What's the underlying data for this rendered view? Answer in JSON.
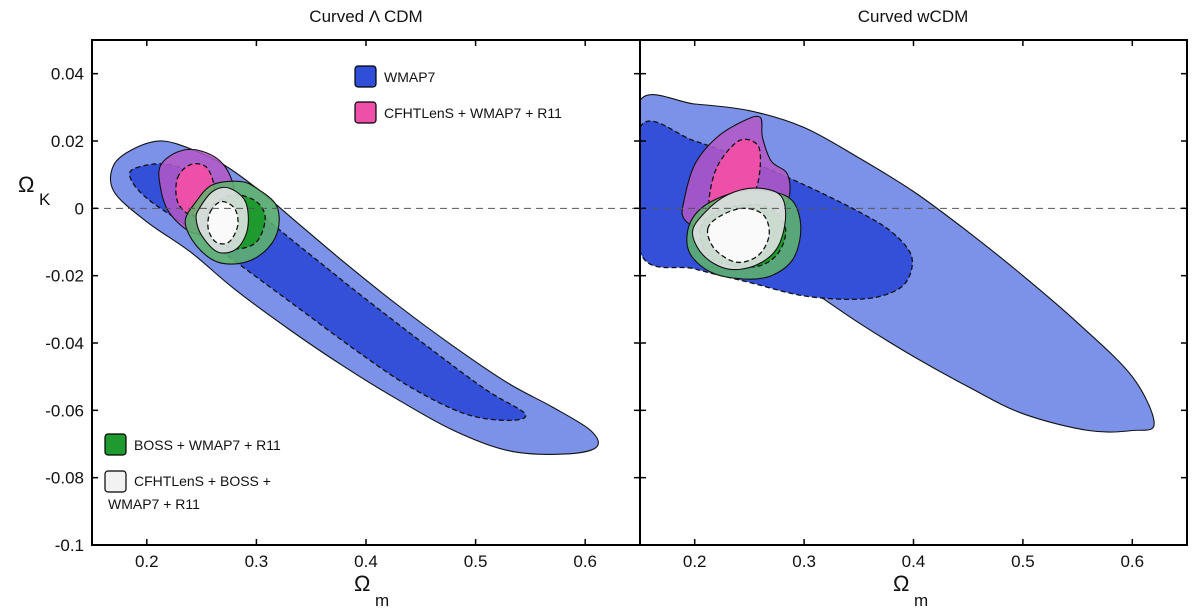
{
  "chart_data": [
    {
      "type": "contour",
      "title": "Curved Λ CDM",
      "xlabel": "Ω",
      "xlabel_sub": "m",
      "ylabel": "Ω",
      "ylabel_sub": "K",
      "xlim": [
        0.15,
        0.65
      ],
      "ylim": [
        -0.1,
        0.05
      ],
      "xticks": [
        0.2,
        0.3,
        0.4,
        0.5,
        0.6
      ],
      "xtick_labels": [
        "0.2",
        "0.3",
        "0.4",
        "0.5",
        "0.6"
      ],
      "yticks": [
        -0.1,
        -0.08,
        -0.06,
        -0.04,
        -0.02,
        0,
        0.02,
        0.04
      ],
      "ytick_labels": [
        "-0.1",
        "-0.08",
        "-0.06",
        "-0.04",
        "-0.02",
        "0",
        "0.02",
        "0.04"
      ],
      "reference_line_y": 0,
      "legend": [
        {
          "label": "WMAP7",
          "color": "#2f4fd8",
          "placement": "top-center"
        },
        {
          "label": "CFHTLenS + WMAP7 + R11",
          "color": "#ee4fa8",
          "placement": "top-center"
        },
        {
          "label": "BOSS + WMAP7 + R11",
          "color": "#1f9a2e",
          "placement": "bottom-left"
        },
        {
          "label": "CFHTLenS + BOSS + WMAP7 + R11",
          "label_lines": [
            "CFHTLenS + BOSS +",
            "WMAP7 + R11"
          ],
          "color": "#f2f2f2",
          "placement": "bottom-left"
        }
      ],
      "contours": [
        {
          "series": "WMAP7",
          "level": "outer",
          "color": "#7b92e8",
          "opacity": 1,
          "dashed": false,
          "points": [
            [
              0.17,
              0.013
            ],
            [
              0.19,
              0.018
            ],
            [
              0.215,
              0.02
            ],
            [
              0.245,
              0.017
            ],
            [
              0.27,
              0.013
            ],
            [
              0.3,
              0.006
            ],
            [
              0.34,
              -0.005
            ],
            [
              0.38,
              -0.016
            ],
            [
              0.43,
              -0.029
            ],
            [
              0.48,
              -0.041
            ],
            [
              0.53,
              -0.052
            ],
            [
              0.57,
              -0.059
            ],
            [
              0.605,
              -0.066
            ],
            [
              0.61,
              -0.071
            ],
            [
              0.58,
              -0.073
            ],
            [
              0.53,
              -0.072
            ],
            [
              0.48,
              -0.066
            ],
            [
              0.43,
              -0.057
            ],
            [
              0.38,
              -0.047
            ],
            [
              0.33,
              -0.036
            ],
            [
              0.28,
              -0.024
            ],
            [
              0.24,
              -0.013
            ],
            [
              0.2,
              -0.004
            ],
            [
              0.17,
              0.005
            ]
          ]
        },
        {
          "series": "WMAP7",
          "level": "inner",
          "color": "#3450d8",
          "opacity": 1,
          "dashed": true,
          "points": [
            [
              0.19,
              0.012
            ],
            [
              0.22,
              0.013
            ],
            [
              0.26,
              0.008
            ],
            [
              0.3,
              -0.001
            ],
            [
              0.35,
              -0.014
            ],
            [
              0.4,
              -0.027
            ],
            [
              0.46,
              -0.042
            ],
            [
              0.51,
              -0.054
            ],
            [
              0.545,
              -0.061
            ],
            [
              0.53,
              -0.063
            ],
            [
              0.49,
              -0.061
            ],
            [
              0.44,
              -0.053
            ],
            [
              0.39,
              -0.042
            ],
            [
              0.34,
              -0.03
            ],
            [
              0.29,
              -0.018
            ],
            [
              0.24,
              -0.006
            ],
            [
              0.2,
              0.003
            ],
            [
              0.185,
              0.009
            ]
          ]
        },
        {
          "series": "CFHTLenS + WMAP7 + R11",
          "level": "outer",
          "color": "#b457c7",
          "opacity": 0.85,
          "dashed": false,
          "points": [
            [
              0.213,
              0.013
            ],
            [
              0.23,
              0.017
            ],
            [
              0.25,
              0.017
            ],
            [
              0.27,
              0.013
            ],
            [
              0.28,
              0.005
            ],
            [
              0.275,
              -0.003
            ],
            [
              0.26,
              -0.007
            ],
            [
              0.24,
              -0.007
            ],
            [
              0.22,
              -0.001
            ],
            [
              0.212,
              0.007
            ]
          ]
        },
        {
          "series": "CFHTLenS + WMAP7 + R11",
          "level": "inner",
          "color": "#ee4fa8",
          "opacity": 1,
          "dashed": true,
          "points": [
            [
              0.228,
              0.009
            ],
            [
              0.24,
              0.013
            ],
            [
              0.255,
              0.012
            ],
            [
              0.262,
              0.005
            ],
            [
              0.256,
              -0.001
            ],
            [
              0.24,
              -0.002
            ],
            [
              0.228,
              0.002
            ]
          ]
        },
        {
          "series": "BOSS + WMAP7 + R11",
          "level": "outer",
          "color": "#5fb56a",
          "opacity": 0.85,
          "dashed": false,
          "points": [
            [
              0.245,
              0.002
            ],
            [
              0.26,
              0.007
            ],
            [
              0.285,
              0.008
            ],
            [
              0.3,
              0.006
            ],
            [
              0.318,
              0.001
            ],
            [
              0.32,
              -0.006
            ],
            [
              0.31,
              -0.012
            ],
            [
              0.29,
              -0.016
            ],
            [
              0.265,
              -0.016
            ],
            [
              0.245,
              -0.011
            ],
            [
              0.235,
              -0.004
            ]
          ]
        },
        {
          "series": "BOSS + WMAP7 + R11",
          "level": "inner",
          "color": "#1f9a2e",
          "opacity": 1,
          "dashed": true,
          "points": [
            [
              0.26,
              0.001
            ],
            [
              0.28,
              0.004
            ],
            [
              0.3,
              0.002
            ],
            [
              0.308,
              -0.003
            ],
            [
              0.3,
              -0.01
            ],
            [
              0.28,
              -0.012
            ],
            [
              0.262,
              -0.009
            ],
            [
              0.255,
              -0.004
            ]
          ]
        },
        {
          "series": "CFHTLenS + BOSS + WMAP7 + R11",
          "level": "outer",
          "color": "#dfe2e2",
          "opacity": 0.9,
          "dashed": false,
          "points": [
            [
              0.248,
              0.0
            ],
            [
              0.26,
              0.005
            ],
            [
              0.275,
              0.006
            ],
            [
              0.29,
              0.002
            ],
            [
              0.292,
              -0.006
            ],
            [
              0.282,
              -0.012
            ],
            [
              0.265,
              -0.013
            ],
            [
              0.25,
              -0.008
            ],
            [
              0.245,
              -0.003
            ]
          ]
        },
        {
          "series": "CFHTLenS + BOSS + WMAP7 + R11",
          "level": "inner",
          "color": "#fafafa",
          "opacity": 1,
          "dashed": true,
          "points": [
            [
              0.258,
              -0.001
            ],
            [
              0.268,
              0.002
            ],
            [
              0.28,
              0.0
            ],
            [
              0.283,
              -0.005
            ],
            [
              0.275,
              -0.01
            ],
            [
              0.263,
              -0.01
            ],
            [
              0.256,
              -0.006
            ]
          ]
        }
      ]
    },
    {
      "type": "contour",
      "title": "Curved wCDM",
      "xlabel": "Ω",
      "xlabel_sub": "m",
      "xlim": [
        0.15,
        0.65
      ],
      "ylim": [
        -0.1,
        0.05
      ],
      "xticks": [
        0.2,
        0.3,
        0.4,
        0.5,
        0.6
      ],
      "xtick_labels": [
        "0.2",
        "0.3",
        "0.4",
        "0.5",
        "0.6"
      ],
      "yticks": [
        -0.1,
        -0.08,
        -0.06,
        -0.04,
        -0.02,
        0,
        0.02,
        0.04
      ],
      "reference_line_y": 0,
      "contours": [
        {
          "series": "WMAP7",
          "level": "outer",
          "color": "#7b92e8",
          "opacity": 1,
          "dashed": false,
          "points": [
            [
              0.15,
              0.032
            ],
            [
              0.2,
              0.031
            ],
            [
              0.25,
              0.029
            ],
            [
              0.3,
              0.024
            ],
            [
              0.35,
              0.015
            ],
            [
              0.4,
              0.005
            ],
            [
              0.45,
              -0.007
            ],
            [
              0.5,
              -0.02
            ],
            [
              0.55,
              -0.034
            ],
            [
              0.6,
              -0.05
            ],
            [
              0.62,
              -0.064
            ],
            [
              0.6,
              -0.066
            ],
            [
              0.56,
              -0.066
            ],
            [
              0.5,
              -0.061
            ],
            [
              0.45,
              -0.053
            ],
            [
              0.4,
              -0.044
            ],
            [
              0.35,
              -0.034
            ],
            [
              0.3,
              -0.023
            ],
            [
              0.25,
              -0.013
            ],
            [
              0.2,
              -0.004
            ],
            [
              0.15,
              0.005
            ]
          ]
        },
        {
          "series": "WMAP7",
          "level": "inner",
          "color": "#3450d8",
          "opacity": 1,
          "dashed": true,
          "points": [
            [
              0.15,
              0.024
            ],
            [
              0.2,
              0.02
            ],
            [
              0.25,
              0.014
            ],
            [
              0.3,
              0.007
            ],
            [
              0.35,
              -0.001
            ],
            [
              0.38,
              -0.007
            ],
            [
              0.398,
              -0.014
            ],
            [
              0.395,
              -0.021
            ],
            [
              0.38,
              -0.025
            ],
            [
              0.35,
              -0.027
            ],
            [
              0.3,
              -0.026
            ],
            [
              0.25,
              -0.022
            ],
            [
              0.2,
              -0.018
            ],
            [
              0.15,
              -0.013
            ]
          ]
        },
        {
          "series": "CFHTLenS + WMAP7 + R11",
          "level": "outer",
          "color": "#b457c7",
          "opacity": 0.85,
          "dashed": false,
          "points": [
            [
              0.19,
              0.002
            ],
            [
              0.2,
              0.013
            ],
            [
              0.22,
              0.021
            ],
            [
              0.245,
              0.026
            ],
            [
              0.26,
              0.027
            ],
            [
              0.262,
              0.021
            ],
            [
              0.27,
              0.014
            ],
            [
              0.285,
              0.01
            ],
            [
              0.285,
              0.002
            ],
            [
              0.265,
              -0.005
            ],
            [
              0.235,
              -0.007
            ],
            [
              0.205,
              -0.006
            ],
            [
              0.19,
              -0.003
            ]
          ]
        },
        {
          "series": "CFHTLenS + WMAP7 + R11",
          "level": "inner",
          "color": "#ee4fa8",
          "opacity": 1,
          "dashed": true,
          "points": [
            [
              0.213,
              0.001
            ],
            [
              0.22,
              0.012
            ],
            [
              0.24,
              0.02
            ],
            [
              0.257,
              0.019
            ],
            [
              0.26,
              0.013
            ],
            [
              0.255,
              0.005
            ],
            [
              0.24,
              0.0
            ],
            [
              0.222,
              -0.002
            ]
          ]
        },
        {
          "series": "BOSS + WMAP7 + R11",
          "level": "outer",
          "color": "#5fb56a",
          "opacity": 0.85,
          "dashed": false,
          "points": [
            [
              0.195,
              -0.005
            ],
            [
              0.21,
              0.001
            ],
            [
              0.24,
              0.005
            ],
            [
              0.27,
              0.005
            ],
            [
              0.29,
              0.002
            ],
            [
              0.297,
              -0.006
            ],
            [
              0.29,
              -0.015
            ],
            [
              0.27,
              -0.02
            ],
            [
              0.245,
              -0.021
            ],
            [
              0.215,
              -0.019
            ],
            [
              0.195,
              -0.013
            ]
          ]
        },
        {
          "series": "BOSS + WMAP7 + R11",
          "level": "inner",
          "color": "#1f9a2e",
          "opacity": 1,
          "dashed": true,
          "points": [
            [
              0.205,
              -0.006
            ],
            [
              0.22,
              -0.001
            ],
            [
              0.245,
              0.001
            ],
            [
              0.27,
              0.0
            ],
            [
              0.283,
              -0.006
            ],
            [
              0.277,
              -0.013
            ],
            [
              0.26,
              -0.017
            ],
            [
              0.235,
              -0.017
            ],
            [
              0.212,
              -0.014
            ]
          ]
        },
        {
          "series": "CFHTLenS + BOSS + WMAP7 + R11",
          "level": "outer",
          "color": "#dfe2e2",
          "opacity": 0.9,
          "dashed": false,
          "points": [
            [
              0.198,
              -0.007
            ],
            [
              0.21,
              -0.001
            ],
            [
              0.23,
              0.004
            ],
            [
              0.255,
              0.006
            ],
            [
              0.278,
              0.004
            ],
            [
              0.283,
              -0.003
            ],
            [
              0.275,
              -0.012
            ],
            [
              0.255,
              -0.017
            ],
            [
              0.23,
              -0.018
            ],
            [
              0.208,
              -0.014
            ]
          ]
        },
        {
          "series": "CFHTLenS + BOSS + WMAP7 + R11",
          "level": "inner",
          "color": "#fafafa",
          "opacity": 1,
          "dashed": true,
          "points": [
            [
              0.212,
              -0.006
            ],
            [
              0.225,
              -0.002
            ],
            [
              0.245,
              0.0
            ],
            [
              0.263,
              -0.002
            ],
            [
              0.268,
              -0.008
            ],
            [
              0.258,
              -0.014
            ],
            [
              0.238,
              -0.016
            ],
            [
              0.218,
              -0.012
            ]
          ]
        }
      ]
    }
  ]
}
